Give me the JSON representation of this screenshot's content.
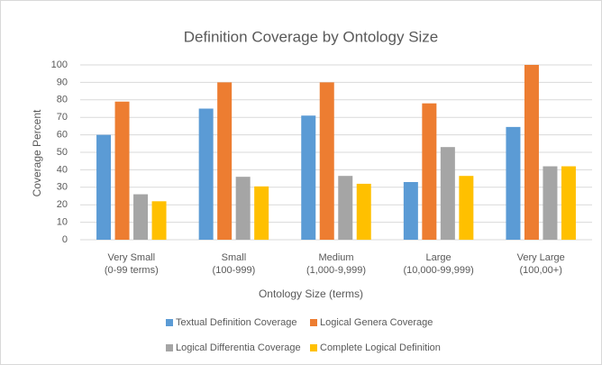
{
  "chart_data": {
    "type": "bar",
    "title": "Definition Coverage by Ontology Size",
    "xlabel": "Ontology Size (terms)",
    "ylabel": "Coverage Percent",
    "categories": [
      [
        "Very Small",
        "(0-99 terms)"
      ],
      [
        "Small",
        "(100-999)"
      ],
      [
        "Medium",
        "(1,000-9,999)"
      ],
      [
        "Large",
        "(10,000-99,999)"
      ],
      [
        "Very Large",
        "(100,00+)"
      ]
    ],
    "series": [
      {
        "name": "Textual Definition Coverage",
        "color": "#5b9bd5",
        "values": [
          60,
          75,
          71,
          33,
          64.5
        ]
      },
      {
        "name": "Logical Genera Coverage",
        "color": "#ed7d31",
        "values": [
          79,
          90,
          90,
          78,
          100
        ]
      },
      {
        "name": "Logical Differentia Coverage",
        "color": "#a5a5a5",
        "values": [
          26,
          36,
          36.5,
          53,
          42
        ]
      },
      {
        "name": "Complete Logical Definition",
        "color": "#ffc000",
        "values": [
          22,
          30.5,
          32,
          36.5,
          42
        ]
      }
    ],
    "ylim": [
      0,
      100
    ],
    "yticks": [
      0,
      10,
      20,
      30,
      40,
      50,
      60,
      70,
      80,
      90,
      100
    ],
    "grid": true,
    "legend": "bottom"
  }
}
